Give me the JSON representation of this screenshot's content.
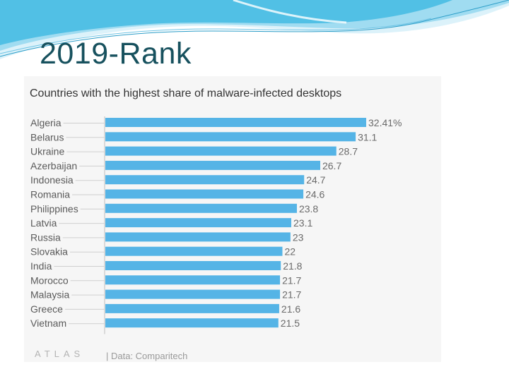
{
  "slide": {
    "title": "2019-Rank"
  },
  "colors": {
    "bar": "#55b4e6",
    "label": "#5a5a5a",
    "value": "#6a6a6a",
    "leader": "#cfcfcf",
    "axis": "#bdbdbd"
  },
  "chart_data": {
    "type": "bar",
    "orientation": "horizontal",
    "title": "Countries with the highest share of malware-infected desktops",
    "categories": [
      "Algeria",
      "Belarus",
      "Ukraine",
      "Azerbaijan",
      "Indonesia",
      "Romania",
      "Philippines",
      "Latvia",
      "Russia",
      "Slovakia",
      "India",
      "Morocco",
      "Malaysia",
      "Greece",
      "Vietnam"
    ],
    "values": [
      32.41,
      31.1,
      28.7,
      26.7,
      24.7,
      24.6,
      23.8,
      23.1,
      23,
      22,
      21.8,
      21.7,
      21.7,
      21.6,
      21.5
    ],
    "value_labels": [
      "32.41%",
      "31.1",
      "28.7",
      "26.7",
      "24.7",
      "24.6",
      "23.8",
      "23.1",
      "23",
      "22",
      "21.8",
      "21.7",
      "21.7",
      "21.6",
      "21.5"
    ],
    "xlim": [
      0,
      32.41
    ],
    "xlabel": "",
    "ylabel": "",
    "grid": false
  },
  "footer": {
    "logo": "ATLAS",
    "source": "| Data: Comparitech"
  }
}
